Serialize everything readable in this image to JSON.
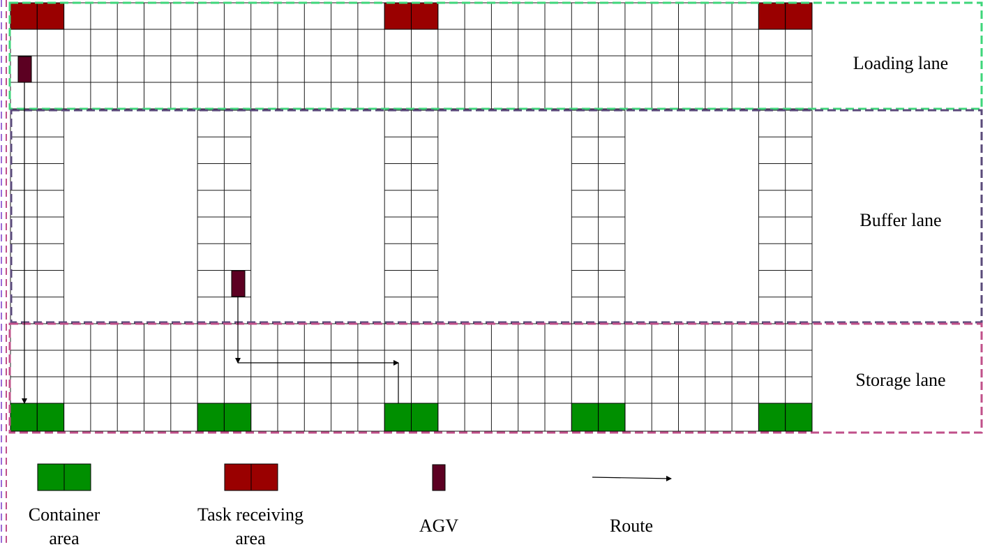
{
  "lanes": {
    "loading": "Loading  lane",
    "buffer": "Buffer lane",
    "storage": "Storage  lane"
  },
  "legend": {
    "container_area": [
      "Container",
      "area"
    ],
    "task_receiving_area": [
      "Task receiving",
      "area"
    ],
    "agv": "AGV",
    "route": "Route"
  },
  "colors": {
    "container": "#008f00",
    "task_receiving": "#9a0000",
    "agv": "#5c0022",
    "grid": "#1a1a1a",
    "loading_border": "#3ed67a",
    "buffer_border": "#5a4a7a",
    "storage_border": "#c0508a",
    "left_border": "#9a6ad6"
  }
}
